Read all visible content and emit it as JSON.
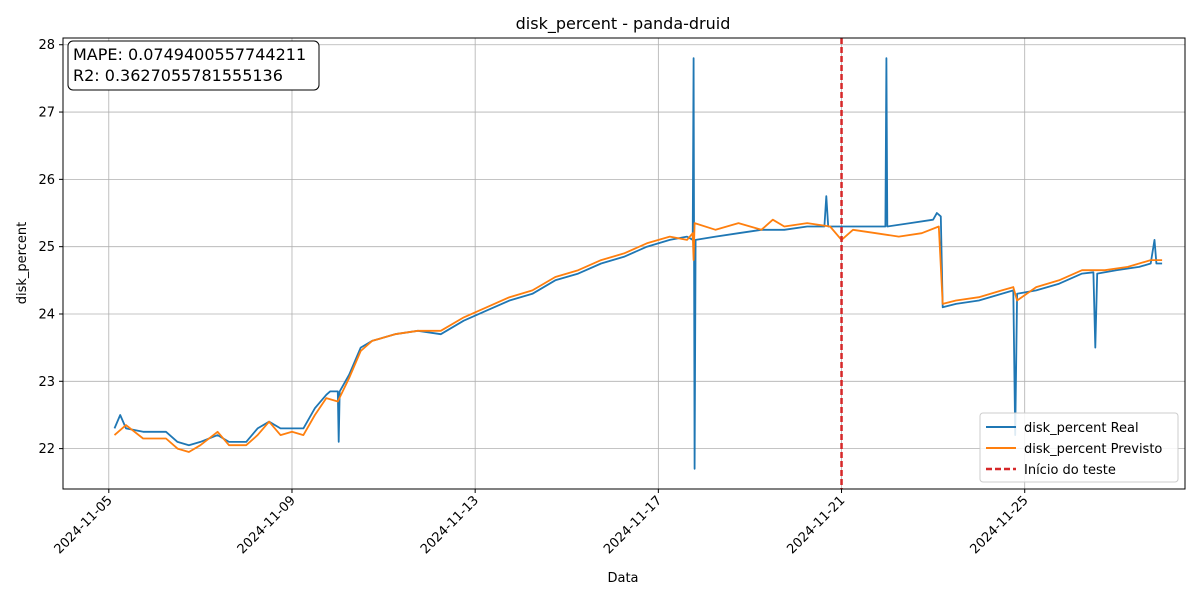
{
  "chart_data": {
    "type": "line",
    "title": "disk_percent - panda-druid",
    "xlabel": "Data",
    "ylabel": "disk_percent",
    "xlim": [
      "2024-11-04T00:00",
      "2024-11-28T12:00"
    ],
    "ylim": [
      21.4,
      28.1
    ],
    "yticks": [
      22,
      23,
      24,
      25,
      26,
      27,
      28
    ],
    "xticks": [
      "2024-11-05",
      "2024-11-09",
      "2024-11-13",
      "2024-11-17",
      "2024-11-21",
      "2024-11-25"
    ],
    "grid": true,
    "legend_position": "lower-right",
    "annotation": {
      "mape": "MAPE: 0.0749400557744211",
      "r2": "R2: 0.3627055781555136"
    },
    "vline": {
      "x": "2024-11-21T00:00",
      "label": "Início do teste",
      "color": "#d62728"
    },
    "series": [
      {
        "name": "disk_percent Real",
        "color": "#1f77b4",
        "points": [
          [
            "2024-11-05T03:00",
            22.3
          ],
          [
            "2024-11-05T06:00",
            22.5
          ],
          [
            "2024-11-05T09:00",
            22.3
          ],
          [
            "2024-11-05T18:00",
            22.25
          ],
          [
            "2024-11-06T06:00",
            22.25
          ],
          [
            "2024-11-06T12:00",
            22.1
          ],
          [
            "2024-11-06T18:00",
            22.05
          ],
          [
            "2024-11-07T00:00",
            22.1
          ],
          [
            "2024-11-07T09:00",
            22.2
          ],
          [
            "2024-11-07T15:00",
            22.1
          ],
          [
            "2024-11-08T00:00",
            22.1
          ],
          [
            "2024-11-08T06:00",
            22.3
          ],
          [
            "2024-11-08T12:00",
            22.4
          ],
          [
            "2024-11-08T18:00",
            22.3
          ],
          [
            "2024-11-09T00:00",
            22.3
          ],
          [
            "2024-11-09T06:00",
            22.3
          ],
          [
            "2024-11-09T12:00",
            22.6
          ],
          [
            "2024-11-09T18:00",
            22.8
          ],
          [
            "2024-11-09T20:00",
            22.85
          ],
          [
            "2024-11-10T00:00",
            22.85
          ],
          [
            "2024-11-10T00:30",
            22.1
          ],
          [
            "2024-11-10T01:00",
            22.85
          ],
          [
            "2024-11-10T06:00",
            23.1
          ],
          [
            "2024-11-10T12:00",
            23.5
          ],
          [
            "2024-11-10T18:00",
            23.6
          ],
          [
            "2024-11-11T06:00",
            23.7
          ],
          [
            "2024-11-11T18:00",
            23.75
          ],
          [
            "2024-11-12T06:00",
            23.7
          ],
          [
            "2024-11-12T18:00",
            23.9
          ],
          [
            "2024-11-13T06:00",
            24.05
          ],
          [
            "2024-11-13T18:00",
            24.2
          ],
          [
            "2024-11-14T06:00",
            24.3
          ],
          [
            "2024-11-14T18:00",
            24.5
          ],
          [
            "2024-11-15T06:00",
            24.6
          ],
          [
            "2024-11-15T18:00",
            24.75
          ],
          [
            "2024-11-16T06:00",
            24.85
          ],
          [
            "2024-11-16T18:00",
            25.0
          ],
          [
            "2024-11-17T06:00",
            25.1
          ],
          [
            "2024-11-17T15:00",
            25.15
          ],
          [
            "2024-11-17T18:00",
            25.1
          ],
          [
            "2024-11-17T18:30",
            27.8
          ],
          [
            "2024-11-17T19:00",
            21.7
          ],
          [
            "2024-11-17T19:30",
            25.1
          ],
          [
            "2024-11-18T06:00",
            25.15
          ],
          [
            "2024-11-18T18:00",
            25.2
          ],
          [
            "2024-11-19T06:00",
            25.25
          ],
          [
            "2024-11-19T18:00",
            25.25
          ],
          [
            "2024-11-20T06:00",
            25.3
          ],
          [
            "2024-11-20T15:00",
            25.3
          ],
          [
            "2024-11-20T16:00",
            25.75
          ],
          [
            "2024-11-20T17:00",
            25.3
          ],
          [
            "2024-11-21T00:00",
            25.3
          ],
          [
            "2024-11-21T06:00",
            25.3
          ],
          [
            "2024-11-21T18:00",
            25.3
          ],
          [
            "2024-11-21T23:00",
            25.3
          ],
          [
            "2024-11-21T23:30",
            27.8
          ],
          [
            "2024-11-22T00:00",
            25.3
          ],
          [
            "2024-11-22T12:00",
            25.35
          ],
          [
            "2024-11-23T00:00",
            25.4
          ],
          [
            "2024-11-23T02:00",
            25.5
          ],
          [
            "2024-11-23T04:00",
            25.45
          ],
          [
            "2024-11-23T05:00",
            24.1
          ],
          [
            "2024-11-23T12:00",
            24.15
          ],
          [
            "2024-11-24T00:00",
            24.2
          ],
          [
            "2024-11-24T12:00",
            24.3
          ],
          [
            "2024-11-24T18:00",
            24.35
          ],
          [
            "2024-11-24T19:00",
            22.2
          ],
          [
            "2024-11-24T20:00",
            24.3
          ],
          [
            "2024-11-25T06:00",
            24.35
          ],
          [
            "2024-11-25T18:00",
            24.45
          ],
          [
            "2024-11-26T06:00",
            24.6
          ],
          [
            "2024-11-26T12:00",
            24.62
          ],
          [
            "2024-11-26T13:00",
            23.5
          ],
          [
            "2024-11-26T14:00",
            24.6
          ],
          [
            "2024-11-27T00:00",
            24.65
          ],
          [
            "2024-11-27T12:00",
            24.7
          ],
          [
            "2024-11-27T18:00",
            24.75
          ],
          [
            "2024-11-27T20:00",
            25.1
          ],
          [
            "2024-11-27T21:00",
            24.75
          ],
          [
            "2024-11-28T00:00",
            24.75
          ]
        ]
      },
      {
        "name": "disk_percent Previsto",
        "color": "#ff7f0e",
        "points": [
          [
            "2024-11-05T03:00",
            22.2
          ],
          [
            "2024-11-05T09:00",
            22.35
          ],
          [
            "2024-11-05T18:00",
            22.15
          ],
          [
            "2024-11-06T06:00",
            22.15
          ],
          [
            "2024-11-06T12:00",
            22.0
          ],
          [
            "2024-11-06T18:00",
            21.95
          ],
          [
            "2024-11-07T00:00",
            22.05
          ],
          [
            "2024-11-07T09:00",
            22.25
          ],
          [
            "2024-11-07T15:00",
            22.05
          ],
          [
            "2024-11-08T00:00",
            22.05
          ],
          [
            "2024-11-08T06:00",
            22.2
          ],
          [
            "2024-11-08T12:00",
            22.4
          ],
          [
            "2024-11-08T18:00",
            22.2
          ],
          [
            "2024-11-09T00:00",
            22.25
          ],
          [
            "2024-11-09T06:00",
            22.2
          ],
          [
            "2024-11-09T12:00",
            22.5
          ],
          [
            "2024-11-09T18:00",
            22.75
          ],
          [
            "2024-11-10T00:00",
            22.7
          ],
          [
            "2024-11-10T06:00",
            23.05
          ],
          [
            "2024-11-10T12:00",
            23.45
          ],
          [
            "2024-11-10T18:00",
            23.6
          ],
          [
            "2024-11-11T06:00",
            23.7
          ],
          [
            "2024-11-11T18:00",
            23.75
          ],
          [
            "2024-11-12T06:00",
            23.75
          ],
          [
            "2024-11-12T18:00",
            23.95
          ],
          [
            "2024-11-13T06:00",
            24.1
          ],
          [
            "2024-11-13T18:00",
            24.25
          ],
          [
            "2024-11-14T06:00",
            24.35
          ],
          [
            "2024-11-14T18:00",
            24.55
          ],
          [
            "2024-11-15T06:00",
            24.65
          ],
          [
            "2024-11-15T18:00",
            24.8
          ],
          [
            "2024-11-16T06:00",
            24.9
          ],
          [
            "2024-11-16T18:00",
            25.05
          ],
          [
            "2024-11-17T06:00",
            25.15
          ],
          [
            "2024-11-17T15:00",
            25.1
          ],
          [
            "2024-11-17T18:00",
            25.2
          ],
          [
            "2024-11-17T18:30",
            24.8
          ],
          [
            "2024-11-17T19:00",
            25.35
          ],
          [
            "2024-11-18T06:00",
            25.25
          ],
          [
            "2024-11-18T18:00",
            25.35
          ],
          [
            "2024-11-19T06:00",
            25.25
          ],
          [
            "2024-11-19T12:00",
            25.4
          ],
          [
            "2024-11-19T18:00",
            25.3
          ],
          [
            "2024-11-20T06:00",
            25.35
          ],
          [
            "2024-11-20T18:00",
            25.3
          ],
          [
            "2024-11-21T00:00",
            25.1
          ],
          [
            "2024-11-21T06:00",
            25.25
          ],
          [
            "2024-11-21T18:00",
            25.2
          ],
          [
            "2024-11-22T06:00",
            25.15
          ],
          [
            "2024-11-22T18:00",
            25.2
          ],
          [
            "2024-11-23T03:00",
            25.3
          ],
          [
            "2024-11-23T05:00",
            24.15
          ],
          [
            "2024-11-23T12:00",
            24.2
          ],
          [
            "2024-11-24T00:00",
            24.25
          ],
          [
            "2024-11-24T12:00",
            24.35
          ],
          [
            "2024-11-24T18:00",
            24.4
          ],
          [
            "2024-11-24T20:00",
            24.2
          ],
          [
            "2024-11-25T06:00",
            24.4
          ],
          [
            "2024-11-25T18:00",
            24.5
          ],
          [
            "2024-11-26T06:00",
            24.65
          ],
          [
            "2024-11-26T18:00",
            24.65
          ],
          [
            "2024-11-27T06:00",
            24.7
          ],
          [
            "2024-11-27T18:00",
            24.8
          ],
          [
            "2024-11-28T00:00",
            24.8
          ]
        ]
      }
    ]
  }
}
